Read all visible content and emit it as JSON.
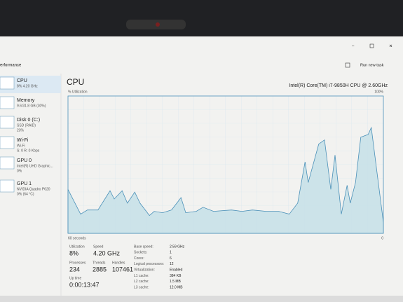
{
  "window": {
    "title": "erformance",
    "run_task": "Run new task"
  },
  "sidebar": [
    {
      "name": "CPU",
      "lines": [
        "8% 4.20 GHz"
      ]
    },
    {
      "name": "Memory",
      "lines": [
        "9.6/31.8 GB (30%)"
      ]
    },
    {
      "name": "Disk 0 (C:)",
      "lines": [
        "SSD (RAID)",
        "23%"
      ]
    },
    {
      "name": "Wi-Fi",
      "lines": [
        "Wi-Fi",
        "S: 0 R: 0 Kbps"
      ]
    },
    {
      "name": "GPU 0",
      "lines": [
        "Intel(R) UHD Graphic...",
        "0%"
      ]
    },
    {
      "name": "GPU 1",
      "lines": [
        "NVIDIA Quadro P620",
        "0% (64 °C)"
      ]
    }
  ],
  "main": {
    "title": "CPU",
    "processor": "Intel(R) Core(TM) i7-9850H CPU @ 2.60GHz"
  },
  "chart_data": {
    "type": "area",
    "ylabel": "% Utilization",
    "x": [
      60,
      57.6,
      56.3,
      54.3,
      52,
      51.2,
      49.7,
      48.7,
      47.3,
      46.3,
      44.5,
      43.6,
      42,
      40.3,
      38.5,
      37.6,
      35.6,
      34.3,
      32.3,
      28.9,
      26.9,
      24.9,
      22.3,
      19.9,
      17.9,
      16.3,
      14.9,
      14.3,
      12.3,
      11.2,
      10,
      9.2,
      8,
      6.9,
      6.3,
      5.3,
      4.3,
      2.9,
      2.3,
      0
    ],
    "series": [
      {
        "name": "CPU",
        "color": "#4a90b8",
        "values": [
          32,
          14,
          17,
          17,
          31,
          25,
          31,
          22,
          30,
          22,
          13,
          16,
          15,
          17,
          26,
          15,
          16,
          19,
          16,
          17,
          16,
          17,
          16,
          16,
          14,
          22,
          52,
          37,
          65,
          68,
          32,
          57,
          14,
          35,
          22,
          37,
          70,
          72,
          77,
          8
        ]
      }
    ],
    "xlim": [
      60,
      0
    ],
    "xticks": [
      {
        "value": 60,
        "label": "60 seconds"
      },
      0
    ],
    "ylim": [
      0,
      100
    ],
    "yticks": [
      {
        "value": 100,
        "label": "100%"
      }
    ],
    "grid": true
  },
  "stats": [
    {
      "label": "Utilization",
      "value": "8%"
    },
    {
      "label": "Speed",
      "value": "4.20 GHz"
    },
    {
      "label": "Processes",
      "value": "234"
    },
    {
      "label": "Threads",
      "value": "2885"
    },
    {
      "label": "Handles",
      "value": "107461"
    },
    {
      "label": "Up time",
      "value": "0:00:13:47"
    }
  ],
  "details": [
    [
      "Base speed:",
      "2.59 GHz"
    ],
    [
      "Sockets:",
      "1"
    ],
    [
      "Cores:",
      "6"
    ],
    [
      "Logical processors:",
      "12"
    ],
    [
      "Virtualization:",
      "Enabled"
    ],
    [
      "L1 cache:",
      "384 KB"
    ],
    [
      "L2 cache:",
      "1.5 MB"
    ],
    [
      "L3 cache:",
      "12.0 MB"
    ]
  ]
}
